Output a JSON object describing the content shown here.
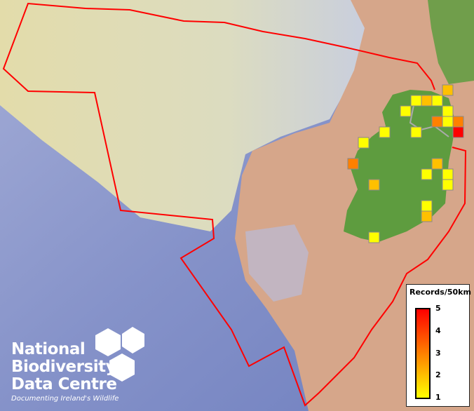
{
  "map": {
    "colors": {
      "sea_deep": "#7f8fc8",
      "shelf": "#d9d7a6",
      "land_bg": "#d8a88c",
      "ireland": "#5e9c3f",
      "boundary": "#ff0000",
      "cell_border": "#888888"
    },
    "cells_records": [
      2,
      1,
      2,
      1,
      1,
      1,
      3,
      1,
      3,
      5,
      1,
      1,
      1,
      3,
      2,
      1,
      1,
      1,
      2,
      1,
      2,
      1
    ]
  },
  "legend": {
    "title": "Records/50km",
    "ticks": [
      "5",
      "4",
      "3",
      "2",
      "1"
    ],
    "range": [
      1,
      5
    ],
    "color_low": "#ffff00",
    "color_mid": "#ff8000",
    "color_high": "#ff0000"
  },
  "logo": {
    "line1": "National",
    "line2": "Biodiversity",
    "line3": "Data Centre",
    "tagline": "Documenting Ireland's Wildlife"
  }
}
